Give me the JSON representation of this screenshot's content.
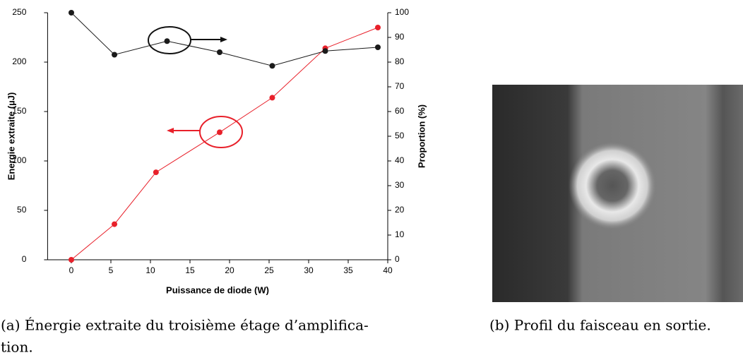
{
  "chart_data": {
    "type": "line",
    "xlabel": "Puissance de diode (W)",
    "ylabel": "Energie extraite (µJ)",
    "y2label": "Proportion (%)",
    "xlim": [
      -3,
      40
    ],
    "xticks": [
      0,
      5,
      10,
      15,
      20,
      25,
      30,
      35,
      40
    ],
    "ylim": [
      0,
      250
    ],
    "yticks": [
      0,
      50,
      100,
      150,
      200,
      250
    ],
    "y2lim": [
      0,
      100
    ],
    "y2ticks": [
      0,
      10,
      20,
      30,
      40,
      50,
      60,
      70,
      80,
      90,
      100
    ],
    "series": [
      {
        "color": "#e8202a",
        "x": [
          0,
          5.45,
          10.7,
          18.75,
          25.4,
          32.1,
          38.75
        ],
        "values": [
          0,
          36,
          88.5,
          129,
          164,
          214,
          235
        ]
      },
      {
        "color": "#1a1a1a",
        "axis": "y2",
        "x": [
          0,
          5.45,
          12.1,
          18.75,
          25.4,
          32.1,
          38.75
        ],
        "values": [
          100,
          83,
          88.5,
          84,
          78.5,
          84.5,
          86
        ]
      }
    ]
  },
  "captions": {
    "a": [
      "(a) Énergie extraite du troisième étage d’amplifica-",
      "tion."
    ],
    "b": "(b) Profil du faisceau en sortie."
  }
}
